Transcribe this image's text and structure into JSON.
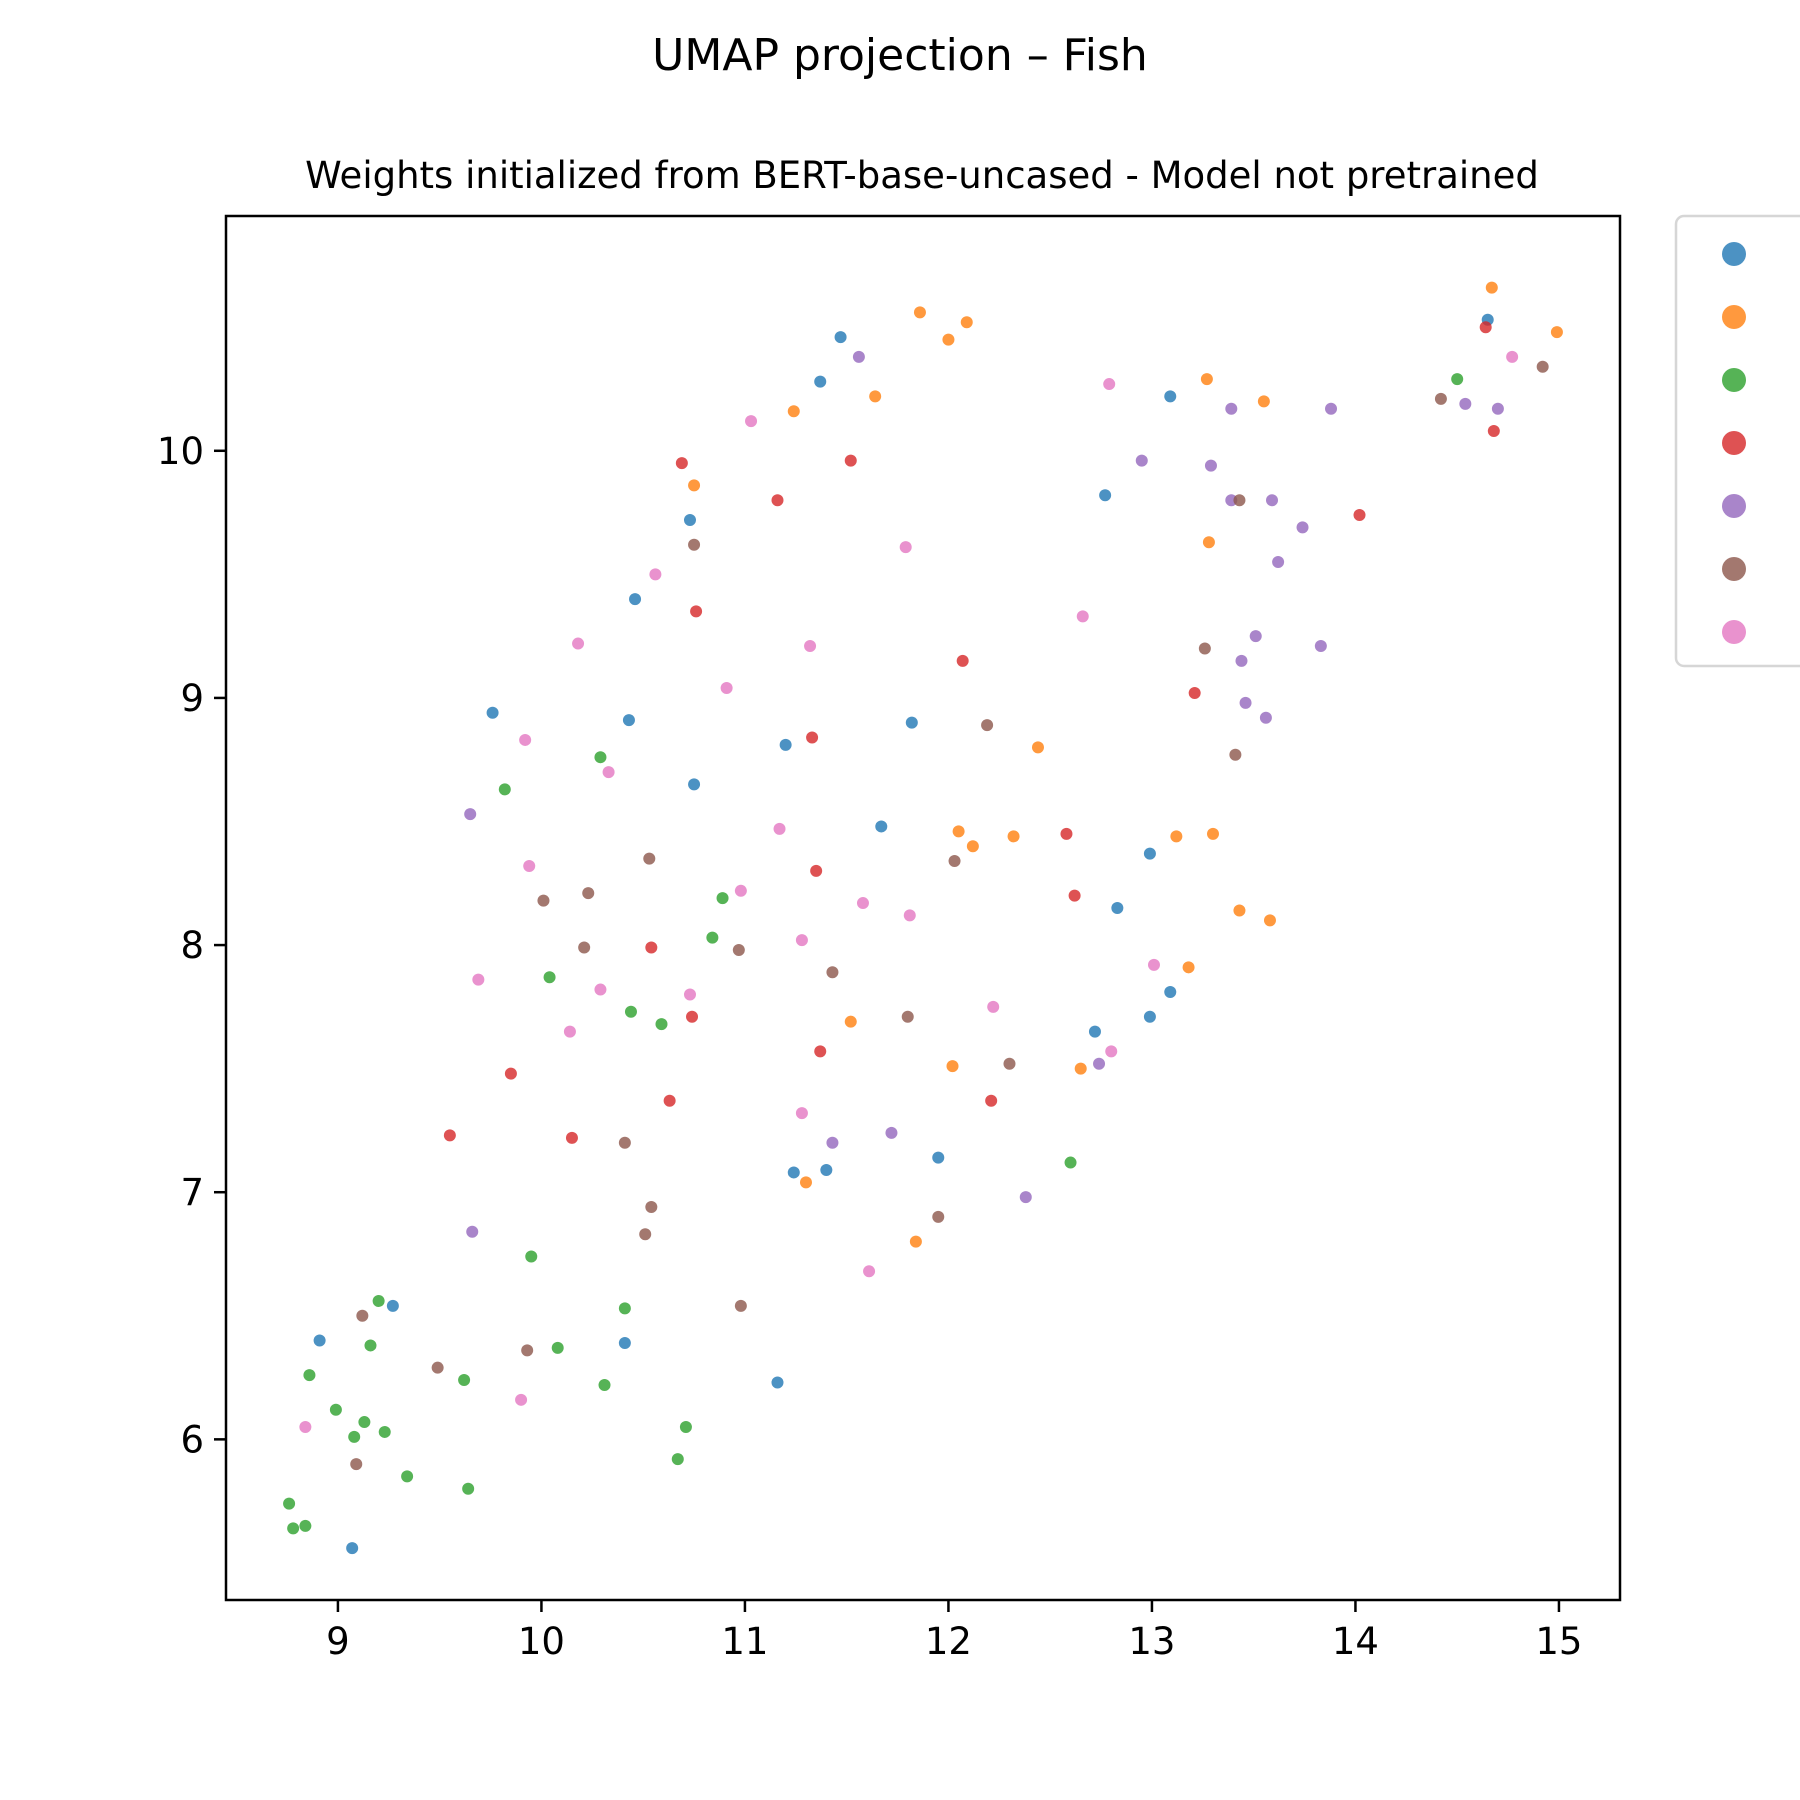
{
  "chart_data": {
    "type": "scatter",
    "title": "UMAP projection – Fish",
    "subtitle": "Weights initialized from BERT-base-uncased - Model not pretrained",
    "xlabel": "",
    "ylabel": "",
    "xlim": [
      8.45,
      15.3
    ],
    "ylim": [
      5.35,
      10.95
    ],
    "xticks": [
      9,
      10,
      11,
      12,
      13,
      14,
      15
    ],
    "yticks": [
      6,
      7,
      8,
      9,
      10
    ],
    "xtick_labels": [
      "9",
      "10",
      "11",
      "12",
      "13",
      "14",
      "15"
    ],
    "ytick_labels": [
      "6",
      "7",
      "8",
      "9",
      "10"
    ],
    "grid": false,
    "legend": "right",
    "series": [
      {
        "color": "#1f77b4",
        "points": [
          [
            11.47,
            10.46
          ],
          [
            11.37,
            10.28
          ],
          [
            10.73,
            9.72
          ],
          [
            10.46,
            9.4
          ],
          [
            9.76,
            8.94
          ],
          [
            10.43,
            8.91
          ],
          [
            11.2,
            8.81
          ],
          [
            11.82,
            8.9
          ],
          [
            10.75,
            8.65
          ],
          [
            11.67,
            8.48
          ],
          [
            12.77,
            9.82
          ],
          [
            13.09,
            10.22
          ],
          [
            14.65,
            10.53
          ],
          [
            12.99,
            8.37
          ],
          [
            12.83,
            8.15
          ],
          [
            13.09,
            7.81
          ],
          [
            12.99,
            7.71
          ],
          [
            12.72,
            7.65
          ],
          [
            11.95,
            7.14
          ],
          [
            11.24,
            7.08
          ],
          [
            11.4,
            7.09
          ],
          [
            10.41,
            6.39
          ],
          [
            9.27,
            6.54
          ],
          [
            8.91,
            6.4
          ],
          [
            11.16,
            6.23
          ],
          [
            9.07,
            5.56
          ]
        ]
      },
      {
        "color": "#ff7f0e",
        "points": [
          [
            11.86,
            10.56
          ],
          [
            12.09,
            10.52
          ],
          [
            12.0,
            10.45
          ],
          [
            11.24,
            10.16
          ],
          [
            11.64,
            10.22
          ],
          [
            10.75,
            9.86
          ],
          [
            13.27,
            10.29
          ],
          [
            13.55,
            10.2
          ],
          [
            14.67,
            10.66
          ],
          [
            14.99,
            10.48
          ],
          [
            13.28,
            9.63
          ],
          [
            12.44,
            8.8
          ],
          [
            12.05,
            8.46
          ],
          [
            12.12,
            8.4
          ],
          [
            12.32,
            8.44
          ],
          [
            13.12,
            8.44
          ],
          [
            13.3,
            8.45
          ],
          [
            13.43,
            8.14
          ],
          [
            13.58,
            8.1
          ],
          [
            13.18,
            7.91
          ],
          [
            11.52,
            7.69
          ],
          [
            12.02,
            7.51
          ],
          [
            12.65,
            7.5
          ],
          [
            11.3,
            7.04
          ],
          [
            11.84,
            6.8
          ]
        ]
      },
      {
        "color": "#2ca02c",
        "points": [
          [
            14.5,
            10.29
          ],
          [
            10.29,
            8.76
          ],
          [
            9.82,
            8.63
          ],
          [
            10.89,
            8.19
          ],
          [
            10.84,
            8.03
          ],
          [
            10.04,
            7.87
          ],
          [
            10.44,
            7.73
          ],
          [
            10.59,
            7.68
          ],
          [
            12.6,
            7.12
          ],
          [
            9.95,
            6.74
          ],
          [
            9.2,
            6.56
          ],
          [
            9.16,
            6.38
          ],
          [
            10.41,
            6.53
          ],
          [
            10.08,
            6.37
          ],
          [
            9.62,
            6.24
          ],
          [
            10.31,
            6.22
          ],
          [
            8.86,
            6.26
          ],
          [
            8.99,
            6.12
          ],
          [
            9.13,
            6.07
          ],
          [
            9.08,
            6.01
          ],
          [
            9.23,
            6.03
          ],
          [
            10.71,
            6.05
          ],
          [
            9.34,
            5.85
          ],
          [
            10.67,
            5.92
          ],
          [
            9.64,
            5.8
          ],
          [
            8.76,
            5.74
          ],
          [
            8.78,
            5.64
          ],
          [
            8.84,
            5.65
          ]
        ]
      },
      {
        "color": "#d62728",
        "points": [
          [
            10.69,
            9.95
          ],
          [
            11.52,
            9.96
          ],
          [
            11.16,
            9.8
          ],
          [
            14.64,
            10.5
          ],
          [
            14.68,
            10.08
          ],
          [
            14.02,
            9.74
          ],
          [
            10.76,
            9.35
          ],
          [
            12.07,
            9.15
          ],
          [
            13.21,
            9.02
          ],
          [
            11.33,
            8.84
          ],
          [
            12.58,
            8.45
          ],
          [
            11.35,
            8.3
          ],
          [
            12.62,
            8.2
          ],
          [
            10.54,
            7.99
          ],
          [
            10.74,
            7.71
          ],
          [
            11.37,
            7.57
          ],
          [
            9.85,
            7.48
          ],
          [
            10.63,
            7.37
          ],
          [
            12.21,
            7.37
          ],
          [
            9.55,
            7.23
          ],
          [
            10.15,
            7.22
          ]
        ]
      },
      {
        "color": "#9467bd",
        "points": [
          [
            11.56,
            10.38
          ],
          [
            13.39,
            10.17
          ],
          [
            13.88,
            10.17
          ],
          [
            14.54,
            10.19
          ],
          [
            14.7,
            10.17
          ],
          [
            12.95,
            9.96
          ],
          [
            13.29,
            9.94
          ],
          [
            13.39,
            9.8
          ],
          [
            13.59,
            9.8
          ],
          [
            13.74,
            9.69
          ],
          [
            13.62,
            9.55
          ],
          [
            13.51,
            9.25
          ],
          [
            13.83,
            9.21
          ],
          [
            13.44,
            9.15
          ],
          [
            13.46,
            8.98
          ],
          [
            13.56,
            8.92
          ],
          [
            9.65,
            8.53
          ],
          [
            12.74,
            7.52
          ],
          [
            11.72,
            7.24
          ],
          [
            11.43,
            7.2
          ],
          [
            12.38,
            6.98
          ],
          [
            9.66,
            6.84
          ]
        ]
      },
      {
        "color": "#8c564b",
        "points": [
          [
            14.42,
            10.21
          ],
          [
            14.92,
            10.34
          ],
          [
            13.43,
            9.8
          ],
          [
            10.75,
            9.62
          ],
          [
            13.26,
            9.2
          ],
          [
            12.19,
            8.89
          ],
          [
            13.41,
            8.77
          ],
          [
            10.53,
            8.35
          ],
          [
            12.03,
            8.34
          ],
          [
            10.01,
            8.18
          ],
          [
            10.23,
            8.21
          ],
          [
            10.21,
            7.99
          ],
          [
            10.97,
            7.98
          ],
          [
            11.43,
            7.89
          ],
          [
            11.8,
            7.71
          ],
          [
            12.3,
            7.52
          ],
          [
            10.41,
            7.2
          ],
          [
            10.54,
            6.94
          ],
          [
            11.95,
            6.9
          ],
          [
            10.51,
            6.83
          ],
          [
            10.98,
            6.54
          ],
          [
            9.12,
            6.5
          ],
          [
            9.93,
            6.36
          ],
          [
            9.49,
            6.29
          ],
          [
            9.09,
            5.9
          ]
        ]
      },
      {
        "color": "#e377c2",
        "points": [
          [
            11.03,
            10.12
          ],
          [
            12.79,
            10.27
          ],
          [
            14.77,
            10.38
          ],
          [
            10.56,
            9.5
          ],
          [
            11.79,
            9.61
          ],
          [
            12.66,
            9.33
          ],
          [
            10.18,
            9.22
          ],
          [
            11.32,
            9.21
          ],
          [
            10.91,
            9.04
          ],
          [
            9.92,
            8.83
          ],
          [
            10.33,
            8.7
          ],
          [
            11.17,
            8.47
          ],
          [
            9.94,
            8.32
          ],
          [
            10.98,
            8.22
          ],
          [
            11.58,
            8.17
          ],
          [
            11.81,
            8.12
          ],
          [
            11.28,
            8.02
          ],
          [
            9.69,
            7.86
          ],
          [
            10.29,
            7.82
          ],
          [
            10.73,
            7.8
          ],
          [
            13.01,
            7.92
          ],
          [
            12.22,
            7.75
          ],
          [
            10.14,
            7.65
          ],
          [
            12.8,
            7.57
          ],
          [
            11.28,
            7.32
          ],
          [
            11.61,
            6.68
          ],
          [
            9.9,
            6.16
          ],
          [
            8.84,
            6.05
          ]
        ]
      }
    ]
  }
}
